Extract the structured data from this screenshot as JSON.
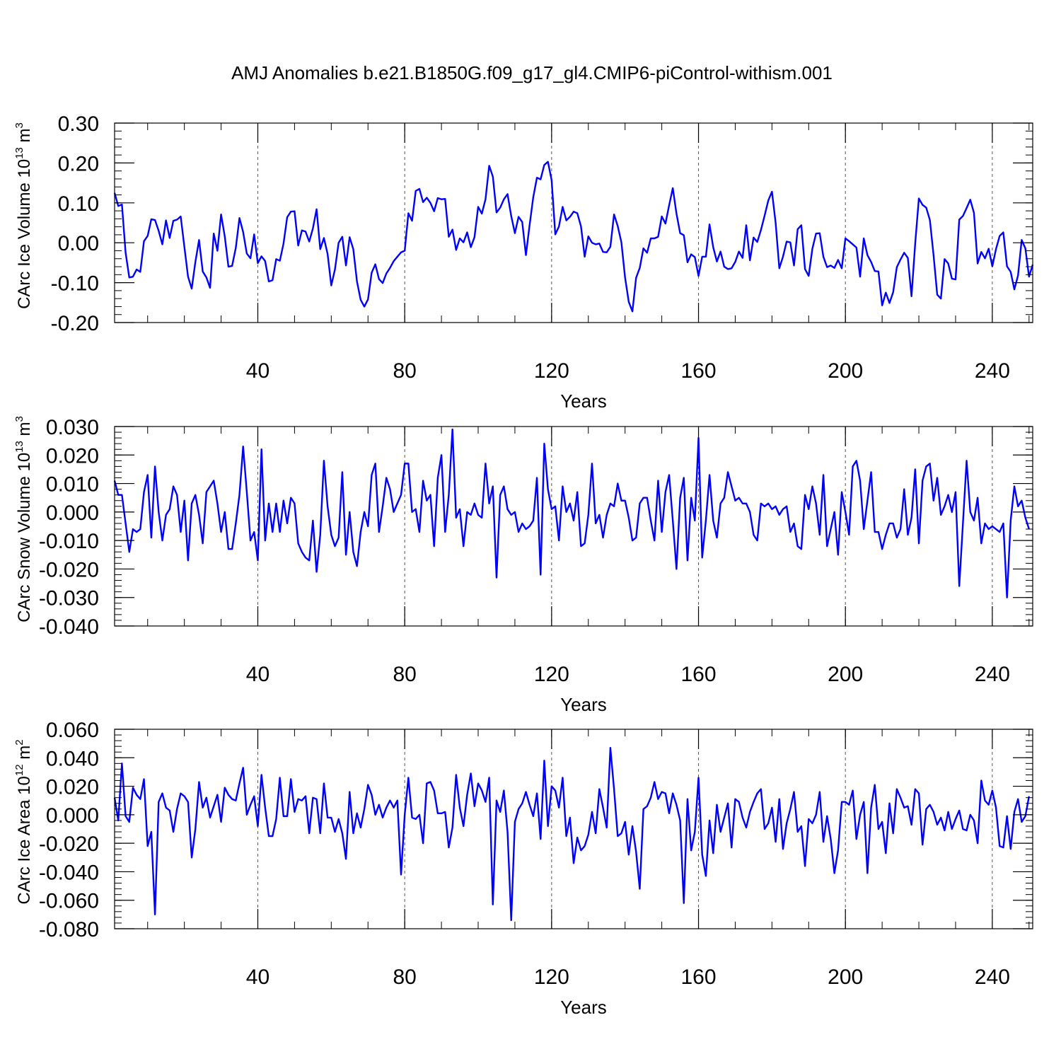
{
  "title": "AMJ Anomalies b.e21.B1850G.f09_g17_gl4.CMIP6-piControl-withism.001",
  "line_color": "#0000ff",
  "chart_data": [
    {
      "type": "line",
      "name": "ice-volume",
      "ylabel_main": "CArc Ice Volume 10",
      "ylabel_exp": "13",
      "ylabel_unit": " m",
      "ylabel_unit_exp": "3",
      "xlabel": "Years",
      "xlim": [
        1,
        251
      ],
      "ylim": [
        -0.2,
        0.3
      ],
      "x_ticks": [
        40,
        80,
        120,
        160,
        200,
        240
      ],
      "x_tick_labels": [
        "40",
        "80",
        "120",
        "160",
        "200",
        "240"
      ],
      "y_ticks": [
        -0.2,
        -0.1,
        0.0,
        0.1,
        0.2,
        0.3
      ],
      "y_tick_labels": [
        "-0.20",
        "-0.10",
        "0.00",
        "0.10",
        "0.20",
        "0.30"
      ],
      "y_minor_step": 0.02,
      "grid": "dashed vertical lines at major x ticks",
      "x_start": 1,
      "values": [
        0.125,
        0.092,
        0.096,
        -0.025,
        -0.087,
        -0.085,
        -0.067,
        -0.073,
        0.004,
        0.017,
        0.059,
        0.057,
        0.03,
        -0.004,
        0.056,
        0.012,
        0.055,
        0.058,
        0.066,
        -0.01,
        -0.085,
        -0.115,
        -0.048,
        0.007,
        -0.072,
        -0.087,
        -0.113,
        0.023,
        -0.02,
        0.071,
        0.016,
        -0.06,
        -0.058,
        -0.013,
        0.062,
        0.027,
        -0.027,
        -0.039,
        0.021,
        -0.051,
        -0.034,
        -0.046,
        -0.097,
        -0.094,
        -0.041,
        -0.045,
        -0.002,
        0.064,
        0.078,
        0.079,
        -0.007,
        0.031,
        0.028,
        0.003,
        0.036,
        0.084,
        -0.016,
        0.012,
        -0.028,
        -0.107,
        -0.067,
        0.0,
        0.015,
        -0.057,
        0.014,
        -0.016,
        -0.097,
        -0.143,
        -0.16,
        -0.142,
        -0.075,
        -0.054,
        -0.091,
        -0.101,
        -0.077,
        -0.063,
        -0.046,
        -0.035,
        -0.024,
        -0.02,
        0.074,
        0.055,
        0.13,
        0.135,
        0.102,
        0.113,
        0.1,
        0.079,
        0.112,
        0.109,
        0.11,
        0.015,
        0.033,
        -0.018,
        0.011,
        0.001,
        0.026,
        -0.011,
        0.014,
        0.09,
        0.073,
        0.109,
        0.193,
        0.166,
        0.076,
        0.088,
        0.109,
        0.122,
        0.067,
        0.024,
        0.065,
        0.052,
        -0.031,
        0.044,
        0.114,
        0.163,
        0.159,
        0.195,
        0.203,
        0.157,
        0.021,
        0.041,
        0.09,
        0.056,
        0.065,
        0.078,
        0.074,
        0.041,
        -0.035,
        0.016,
        0.0,
        -0.004,
        -0.002,
        -0.023,
        -0.024,
        -0.01,
        0.071,
        0.042,
        0.001,
        -0.087,
        -0.148,
        -0.172,
        -0.088,
        -0.063,
        -0.014,
        -0.025,
        0.011,
        0.011,
        0.015,
        0.066,
        0.048,
        0.094,
        0.137,
        0.073,
        0.024,
        0.019,
        -0.049,
        -0.029,
        -0.036,
        -0.083,
        -0.035,
        -0.035,
        0.046,
        -0.011,
        -0.047,
        -0.022,
        -0.06,
        -0.066,
        -0.064,
        -0.048,
        -0.022,
        -0.038,
        0.044,
        -0.044,
        0.013,
        0.002,
        0.032,
        0.068,
        0.106,
        0.128,
        0.05,
        -0.064,
        -0.035,
        0.003,
        0.001,
        -0.057,
        0.034,
        0.044,
        -0.066,
        -0.083,
        -0.015,
        0.023,
        0.024,
        -0.035,
        -0.061,
        -0.057,
        -0.063,
        -0.043,
        -0.064,
        0.011,
        0.004,
        -0.004,
        -0.012,
        -0.085,
        0.011,
        -0.031,
        -0.048,
        -0.071,
        -0.072,
        -0.157,
        -0.125,
        -0.151,
        -0.124,
        -0.061,
        -0.042,
        -0.025,
        -0.038,
        -0.134,
        -0.002,
        0.111,
        0.095,
        0.088,
        0.057,
        -0.031,
        -0.13,
        -0.14,
        -0.041,
        -0.052,
        -0.09,
        -0.092,
        0.058,
        0.067,
        0.087,
        0.108,
        0.075,
        -0.052,
        -0.023,
        -0.039,
        -0.015,
        -0.059,
        -0.016,
        0.017,
        0.026,
        -0.059,
        -0.073,
        -0.117,
        -0.082,
        0.007,
        -0.014,
        -0.085,
        -0.055
      ]
    },
    {
      "type": "line",
      "name": "snow-volume",
      "ylabel_main": "CArc Snow Volume 10",
      "ylabel_exp": "13",
      "ylabel_unit": " m",
      "ylabel_unit_exp": "3",
      "xlabel": "Years",
      "xlim": [
        1,
        251
      ],
      "ylim": [
        -0.04,
        0.03
      ],
      "x_ticks": [
        40,
        80,
        120,
        160,
        200,
        240
      ],
      "x_tick_labels": [
        "40",
        "80",
        "120",
        "160",
        "200",
        "240"
      ],
      "y_ticks": [
        -0.04,
        -0.03,
        -0.02,
        -0.01,
        0.0,
        0.01,
        0.02,
        0.03
      ],
      "y_tick_labels": [
        "-0.040",
        "-0.030",
        "-0.020",
        "-0.010",
        "0.000",
        "0.010",
        "0.020",
        "0.030"
      ],
      "y_minor_step": 0.002,
      "grid": "dashed vertical lines at major x ticks",
      "x_start": 1,
      "values": [
        0.011,
        0.006,
        0.006,
        -0.004,
        -0.014,
        -0.006,
        -0.007,
        -0.006,
        0.007,
        0.013,
        -0.009,
        0.016,
        0.0,
        -0.01,
        -0.001,
        0.001,
        0.009,
        0.006,
        -0.007,
        0.004,
        -0.017,
        0.003,
        0.006,
        -0.001,
        -0.011,
        0.007,
        0.009,
        0.011,
        0.003,
        -0.007,
        0.0,
        -0.013,
        -0.013,
        -0.004,
        0.006,
        0.023,
        0.007,
        -0.01,
        -0.007,
        -0.017,
        0.022,
        -0.01,
        0.003,
        -0.007,
        0.003,
        -0.007,
        0.004,
        -0.004,
        0.005,
        0.003,
        -0.011,
        -0.014,
        -0.016,
        -0.017,
        -0.003,
        -0.021,
        -0.008,
        0.018,
        0.002,
        -0.008,
        -0.012,
        -0.009,
        0.014,
        -0.015,
        0.0,
        -0.014,
        -0.019,
        -0.007,
        0.0,
        -0.005,
        0.013,
        0.017,
        -0.007,
        0.002,
        0.012,
        0.008,
        0.0,
        0.003,
        0.006,
        0.017,
        0.017,
        0.0,
        0.001,
        -0.007,
        0.011,
        0.004,
        0.006,
        -0.012,
        0.012,
        0.02,
        -0.007,
        0.006,
        0.029,
        -0.002,
        0.001,
        -0.012,
        0.0,
        -0.001,
        0.003,
        -0.001,
        -0.002,
        0.017,
        0.003,
        0.009,
        -0.023,
        0.006,
        0.009,
        0.001,
        -0.001,
        0.0,
        -0.007,
        -0.004,
        -0.006,
        -0.005,
        -0.003,
        0.012,
        -0.022,
        0.024,
        0.008,
        0.001,
        0.002,
        -0.01,
        0.009,
        0.0,
        0.003,
        -0.003,
        0.007,
        -0.012,
        -0.011,
        -0.001,
        0.017,
        -0.004,
        -0.001,
        -0.009,
        -0.001,
        0.003,
        0.002,
        0.01,
        0.004,
        0.004,
        -0.002,
        -0.01,
        -0.009,
        0.003,
        0.005,
        0.005,
        -0.003,
        -0.01,
        0.011,
        -0.007,
        0.007,
        0.013,
        -0.003,
        -0.02,
        0.005,
        0.012,
        -0.017,
        0.005,
        -0.003,
        0.026,
        -0.016,
        -0.003,
        0.013,
        -0.003,
        -0.009,
        0.003,
        0.005,
        0.014,
        0.009,
        0.004,
        0.005,
        0.003,
        0.003,
        0.0,
        -0.008,
        -0.01,
        0.003,
        0.002,
        0.003,
        0.001,
        0.002,
        -0.001,
        0.001,
        0.002,
        -0.007,
        -0.004,
        -0.012,
        -0.013,
        0.006,
        0.001,
        0.009,
        0.003,
        -0.008,
        0.013,
        -0.012,
        -0.006,
        0.0,
        -0.015,
        0.007,
        0.0,
        -0.008,
        0.016,
        0.018,
        0.011,
        -0.006,
        0.004,
        0.014,
        -0.007,
        -0.007,
        -0.013,
        -0.008,
        -0.004,
        -0.004,
        -0.009,
        -0.006,
        0.008,
        -0.008,
        -0.002,
        0.015,
        -0.011,
        0.011,
        0.016,
        0.017,
        0.004,
        0.012,
        -0.001,
        0.002,
        0.006,
        0.0,
        0.007,
        -0.026,
        -0.004,
        0.018,
        0.0,
        -0.003,
        0.005,
        -0.011,
        -0.004,
        -0.006,
        -0.005,
        -0.006,
        -0.007,
        -0.004,
        -0.03,
        -0.003,
        0.009,
        0.002,
        0.004,
        -0.002,
        -0.006
      ]
    },
    {
      "type": "line",
      "name": "ice-area",
      "ylabel_main": "CArc Ice Area 10",
      "ylabel_exp": "12",
      "ylabel_unit": " m",
      "ylabel_unit_exp": "2",
      "xlabel": "Years",
      "xlim": [
        1,
        251
      ],
      "ylim": [
        -0.08,
        0.06
      ],
      "x_ticks": [
        40,
        80,
        120,
        160,
        200,
        240
      ],
      "x_tick_labels": [
        "40",
        "80",
        "120",
        "160",
        "200",
        "240"
      ],
      "y_ticks": [
        -0.08,
        -0.06,
        -0.04,
        -0.02,
        0.0,
        0.02,
        0.04,
        0.06
      ],
      "y_tick_labels": [
        "-0.080",
        "-0.060",
        "-0.040",
        "-0.020",
        "0.000",
        "0.020",
        "0.040",
        "0.060"
      ],
      "y_minor_step": 0.004,
      "grid": "dashed vertical lines at major x ticks",
      "x_start": 1,
      "values": [
        0.012,
        -0.004,
        0.036,
        -0.001,
        -0.005,
        0.019,
        0.014,
        0.011,
        0.025,
        -0.022,
        -0.012,
        -0.07,
        0.009,
        0.015,
        0.005,
        0.003,
        -0.012,
        0.004,
        0.015,
        0.013,
        0.009,
        -0.03,
        -0.01,
        0.023,
        0.005,
        0.012,
        -0.002,
        0.006,
        0.014,
        -0.005,
        0.019,
        0.014,
        0.011,
        0.01,
        0.022,
        0.033,
        0.0,
        0.007,
        0.013,
        -0.008,
        0.028,
        0.005,
        -0.015,
        -0.015,
        -0.003,
        0.026,
        -0.001,
        -0.001,
        0.025,
        0.002,
        0.011,
        0.01,
        0.013,
        -0.013,
        0.012,
        0.011,
        -0.013,
        0.022,
        -0.002,
        -0.002,
        -0.012,
        -0.003,
        -0.013,
        -0.031,
        0.016,
        -0.013,
        0.001,
        -0.009,
        0.004,
        0.021,
        0.014,
        0.0,
        0.007,
        -0.002,
        0.005,
        0.01,
        0.005,
        0.01,
        -0.042,
        0.0,
        0.026,
        -0.002,
        -0.003,
        0.0,
        -0.02,
        0.022,
        0.023,
        0.017,
        0.001,
        0.001,
        0.002,
        -0.023,
        -0.009,
        0.028,
        0.005,
        -0.008,
        0.014,
        0.029,
        0.006,
        0.022,
        0.017,
        0.009,
        0.026,
        -0.063,
        0.01,
        0.002,
        0.017,
        -0.012,
        -0.074,
        -0.005,
        0.004,
        0.008,
        0.016,
        0.007,
        -0.001,
        0.015,
        -0.017,
        0.038,
        -0.008,
        0.02,
        0.017,
        0.005,
        0.026,
        -0.015,
        -0.002,
        -0.034,
        -0.016,
        -0.025,
        -0.022,
        -0.014,
        0.002,
        -0.013,
        0.018,
        0.005,
        -0.009,
        0.047,
        0.018,
        -0.015,
        -0.013,
        -0.005,
        -0.028,
        -0.008,
        -0.026,
        -0.052,
        0.004,
        0.006,
        0.012,
        0.023,
        0.011,
        0.016,
        0.015,
        0.001,
        0.015,
        0.007,
        -0.004,
        -0.062,
        0.011,
        -0.025,
        -0.012,
        0.026,
        -0.028,
        -0.043,
        -0.004,
        -0.027,
        0.007,
        -0.012,
        -0.002,
        0.008,
        -0.023,
        0.011,
        0.009,
        -0.002,
        -0.009,
        0.002,
        0.009,
        0.015,
        0.018,
        -0.01,
        -0.006,
        0.005,
        -0.019,
        0.011,
        -0.024,
        -0.006,
        0.004,
        0.016,
        -0.012,
        -0.008,
        -0.036,
        -0.003,
        -0.006,
        0.0,
        0.016,
        -0.019,
        -0.001,
        -0.017,
        -0.041,
        -0.025,
        0.009,
        0.009,
        0.007,
        0.017,
        -0.017,
        0.0,
        0.009,
        -0.041,
        0.005,
        0.021,
        -0.01,
        -0.005,
        -0.027,
        0.008,
        -0.013,
        0.018,
        0.012,
        0.005,
        0.006,
        -0.007,
        0.018,
        0.015,
        -0.021,
        0.004,
        0.007,
        0.002,
        -0.007,
        -0.002,
        -0.011,
        0.002,
        -0.01,
        -0.003,
        0.003,
        -0.01,
        -0.011,
        0.0,
        -0.004,
        -0.02,
        0.024,
        0.01,
        0.007,
        0.017,
        0.005,
        -0.022,
        -0.023,
        -0.001,
        -0.024,
        0.002,
        0.011,
        -0.005,
        -0.001,
        0.013
      ]
    }
  ]
}
